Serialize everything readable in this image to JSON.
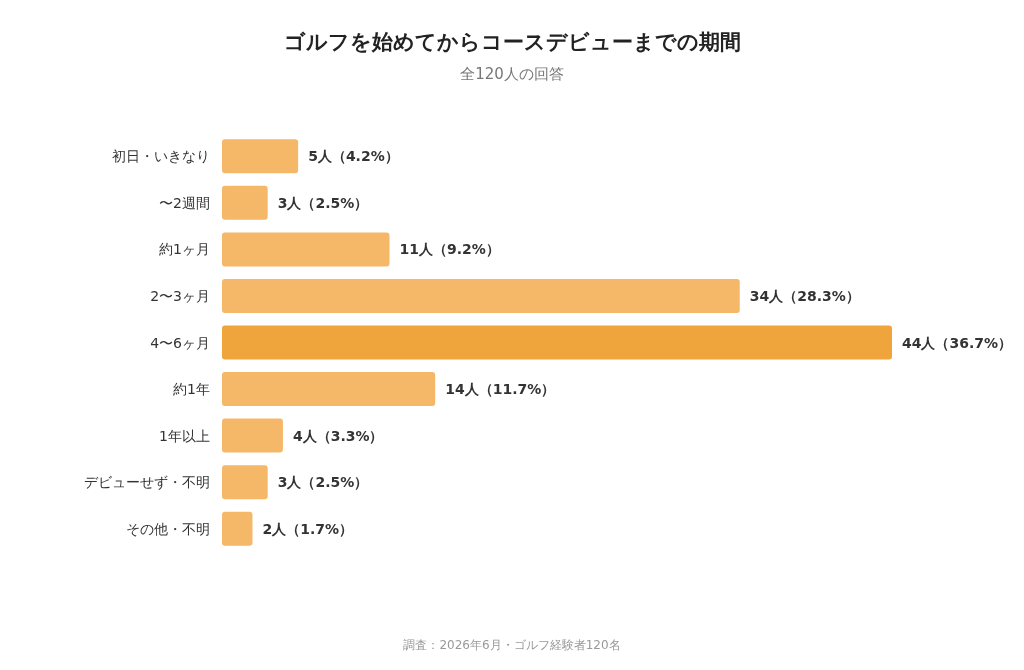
{
  "chart_data": {
    "type": "bar",
    "orientation": "horizontal",
    "title": "ゴルフを始めてからコースデビューまでの期間",
    "subtitle": "全120人の回答",
    "categories": [
      "初日・いきなり",
      "〜2週間",
      "約1ヶ月",
      "2〜3ヶ月",
      "4〜6ヶ月",
      "約1年",
      "1年以上",
      "デビューせず・不明",
      "その他・不明"
    ],
    "values": [
      5,
      3,
      11,
      34,
      44,
      14,
      4,
      3,
      2
    ],
    "colors": [
      "#f5b768",
      "#f5b768",
      "#f5b768",
      "#f5b768",
      "#f0a43c",
      "#f5b768",
      "#f5b768",
      "#f5b768",
      "#f5b768"
    ],
    "value_labels": [
      "5人（4.2%）",
      "3人（2.5%）",
      "11人（9.2%）",
      "34人（28.3%）",
      "44人（36.7%）",
      "14人（11.7%）",
      "4人（3.3%）",
      "3人（2.5%）",
      "2人（1.7%）"
    ],
    "annotations": [
      "調査：2026年6月・ゴルフ経験者120名"
    ]
  }
}
